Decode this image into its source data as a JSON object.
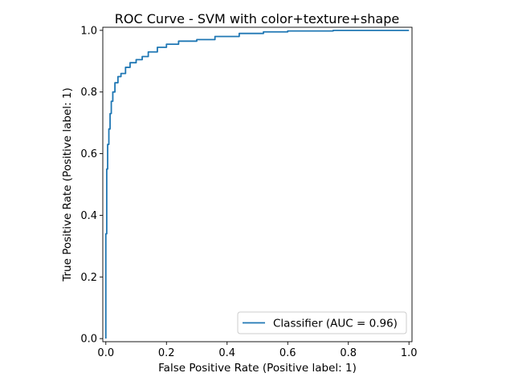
{
  "chart_data": {
    "type": "line",
    "title": "ROC Curve - SVM with color+texture+shape",
    "xlabel": "False Positive Rate (Positive label: 1)",
    "ylabel": "True Positive Rate (Positive label: 1)",
    "xlim": [
      -0.01,
      1.01
    ],
    "ylim": [
      -0.01,
      1.01
    ],
    "xticks": [
      "0.0",
      "0.2",
      "0.4",
      "0.6",
      "0.8",
      "1.0"
    ],
    "yticks": [
      "0.0",
      "0.2",
      "0.4",
      "0.6",
      "0.8",
      "1.0"
    ],
    "grid": false,
    "legend_position": "lower-right",
    "series": [
      {
        "name": "Classifier (AUC = 0.96)",
        "color": "#1f77b4",
        "x": [
          0.0,
          0.0,
          0.003,
          0.003,
          0.006,
          0.006,
          0.01,
          0.01,
          0.014,
          0.014,
          0.018,
          0.018,
          0.023,
          0.023,
          0.03,
          0.03,
          0.04,
          0.04,
          0.05,
          0.05,
          0.065,
          0.065,
          0.08,
          0.08,
          0.1,
          0.1,
          0.12,
          0.12,
          0.14,
          0.14,
          0.17,
          0.17,
          0.2,
          0.2,
          0.24,
          0.24,
          0.3,
          0.3,
          0.36,
          0.36,
          0.44,
          0.44,
          0.52,
          0.52,
          0.6,
          0.6,
          0.75,
          0.75,
          1.0
        ],
        "y": [
          0.0,
          0.34,
          0.34,
          0.55,
          0.55,
          0.63,
          0.63,
          0.68,
          0.68,
          0.73,
          0.73,
          0.77,
          0.77,
          0.8,
          0.8,
          0.83,
          0.83,
          0.85,
          0.85,
          0.86,
          0.86,
          0.88,
          0.88,
          0.895,
          0.895,
          0.905,
          0.905,
          0.915,
          0.915,
          0.93,
          0.93,
          0.945,
          0.945,
          0.955,
          0.955,
          0.965,
          0.965,
          0.97,
          0.97,
          0.98,
          0.98,
          0.99,
          0.99,
          0.995,
          0.995,
          0.998,
          0.998,
          1.0,
          1.0
        ]
      }
    ]
  }
}
